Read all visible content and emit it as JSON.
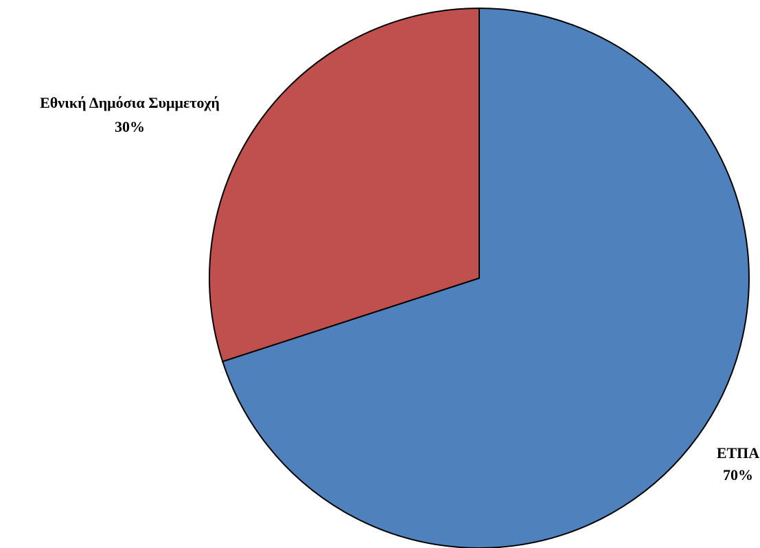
{
  "chart_data": {
    "type": "pie",
    "title": "",
    "legend": "none",
    "slices": [
      {
        "label": "ΕΤΠΑ",
        "percent_label": "70%",
        "value": 70,
        "color": "#4F81BD"
      },
      {
        "label": "Εθνική Δημόσια Συμμετοχή",
        "percent_label": "30%",
        "value": 30,
        "color": "#C0504D"
      }
    ],
    "start_angle_deg": 0,
    "direction": "clockwise",
    "edge_color": "#000000"
  }
}
